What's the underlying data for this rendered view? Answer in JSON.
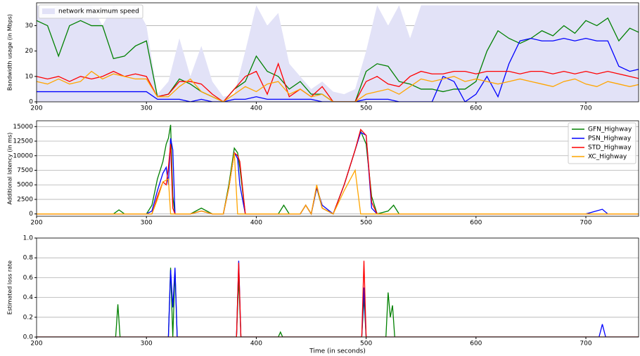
{
  "chart_data": [
    {
      "type": "line",
      "legend": "upper left",
      "grid": true,
      "y_label": "Bandwidth usage (in Mbps)",
      "xlim": [
        200,
        748
      ],
      "xticks": [
        200,
        300,
        400,
        500,
        600,
        700
      ],
      "ylim": [
        0,
        39
      ],
      "yticks": [
        0,
        10,
        20,
        30
      ],
      "x": [
        200,
        210,
        220,
        230,
        240,
        250,
        260,
        270,
        280,
        290,
        300,
        310,
        320,
        330,
        340,
        350,
        360,
        370,
        380,
        390,
        400,
        410,
        420,
        430,
        440,
        450,
        460,
        470,
        480,
        490,
        500,
        510,
        520,
        530,
        540,
        550,
        560,
        570,
        580,
        590,
        600,
        610,
        620,
        630,
        640,
        650,
        660,
        670,
        680,
        690,
        700,
        710,
        720,
        730,
        740,
        750
      ],
      "series": [
        {
          "name": "network maximum speed",
          "style": "area",
          "color": "#e2e2f7",
          "values": [
            38,
            36,
            38,
            34,
            38,
            38,
            30,
            38,
            35,
            38,
            30,
            3,
            8,
            25,
            10,
            22,
            8,
            2,
            3,
            20,
            38,
            30,
            35,
            15,
            10,
            5,
            8,
            4,
            3,
            5,
            20,
            38,
            30,
            38,
            25,
            38,
            38,
            38,
            38,
            38,
            38,
            38,
            38,
            38,
            38,
            38,
            38,
            38,
            38,
            38,
            38,
            38,
            38,
            38,
            38,
            38
          ]
        },
        {
          "color": "#008000",
          "values": [
            32,
            30,
            18,
            30,
            32,
            30,
            30,
            17,
            18,
            22,
            24,
            2,
            3,
            9,
            7,
            4,
            2,
            0,
            5,
            8,
            18,
            12,
            10,
            5,
            8,
            3,
            3,
            0,
            0,
            0,
            12,
            15,
            14,
            8,
            7,
            5,
            5,
            4,
            5,
            5,
            8,
            20,
            28,
            25,
            23,
            25,
            28,
            26,
            30,
            27,
            32,
            30,
            33,
            24,
            29,
            27
          ]
        },
        {
          "color": "#0000ff",
          "values": [
            4,
            4,
            4,
            4,
            4,
            4,
            4,
            4,
            4,
            4,
            4,
            1,
            1,
            1,
            0,
            1,
            0,
            0,
            1,
            1,
            2,
            1,
            1,
            1,
            1,
            1,
            0,
            0,
            0,
            0,
            1,
            1,
            1,
            0,
            0,
            0,
            0,
            10,
            8,
            0,
            3,
            10,
            2,
            15,
            24,
            25,
            24,
            24,
            25,
            24,
            25,
            24,
            24,
            14,
            12,
            13
          ]
        },
        {
          "color": "#ff0000",
          "values": [
            10,
            9,
            10,
            8,
            10,
            9,
            10,
            12,
            10,
            11,
            10,
            2,
            3,
            8,
            8,
            7,
            3,
            0,
            5,
            10,
            12,
            3,
            15,
            2,
            5,
            2,
            6,
            0,
            0,
            0,
            8,
            10,
            7,
            6,
            10,
            12,
            11,
            11,
            12,
            12,
            11,
            12,
            12,
            12,
            11,
            12,
            12,
            11,
            12,
            11,
            12,
            11,
            12,
            11,
            10,
            9
          ]
        },
        {
          "color": "#ffa500",
          "values": [
            8,
            7,
            9,
            7,
            8,
            12,
            9,
            11,
            10,
            9,
            9,
            2,
            2,
            6,
            9,
            4,
            2,
            0,
            3,
            6,
            4,
            7,
            8,
            3,
            5,
            2,
            3,
            0,
            0,
            0,
            3,
            4,
            5,
            3,
            6,
            9,
            8,
            9,
            10,
            8,
            9,
            8,
            7,
            8,
            9,
            8,
            7,
            6,
            8,
            9,
            7,
            6,
            8,
            7,
            6,
            7
          ]
        }
      ]
    },
    {
      "type": "line",
      "legend": "upper right",
      "grid": true,
      "y_label": "Additional latency (in ms)",
      "xlim": [
        200,
        748
      ],
      "xticks": [
        200,
        300,
        400,
        500,
        600,
        700
      ],
      "ylim": [
        -400,
        16000
      ],
      "yticks": [
        0,
        2500,
        5000,
        7500,
        10000,
        12500,
        15000
      ],
      "x": [
        200,
        250,
        270,
        275,
        280,
        300,
        305,
        310,
        315,
        318,
        320,
        322,
        324,
        326,
        330,
        340,
        350,
        360,
        370,
        375,
        380,
        383,
        385,
        390,
        400,
        420,
        425,
        430,
        440,
        445,
        450,
        455,
        460,
        470,
        480,
        490,
        495,
        500,
        505,
        510,
        520,
        525,
        530,
        550,
        600,
        700,
        715,
        720,
        750
      ],
      "series": [
        {
          "name": "GFN_Highway",
          "color": "#008000",
          "values": [
            0,
            0,
            0,
            700,
            0,
            0,
            1500,
            6000,
            9000,
            12000,
            13000,
            15300,
            3000,
            0,
            0,
            0,
            1000,
            0,
            0,
            5000,
            11300,
            10500,
            8000,
            0,
            0,
            0,
            1500,
            0,
            0,
            1500,
            0,
            4500,
            1000,
            0,
            5000,
            11000,
            14200,
            12000,
            3000,
            0,
            500,
            1500,
            0,
            0,
            0,
            0,
            0,
            0,
            0
          ]
        },
        {
          "name": "PSN_Highway",
          "color": "#0000ff",
          "values": [
            0,
            0,
            0,
            0,
            0,
            0,
            500,
            4000,
            7000,
            8000,
            5000,
            13000,
            11000,
            0,
            0,
            0,
            500,
            0,
            0,
            4500,
            10500,
            9500,
            5000,
            0,
            0,
            0,
            0,
            0,
            0,
            1500,
            0,
            4500,
            1500,
            0,
            5000,
            11000,
            14000,
            13500,
            1000,
            0,
            0,
            0,
            0,
            0,
            0,
            0,
            800,
            0,
            0
          ]
        },
        {
          "name": "STD_Highway",
          "color": "#ff0000",
          "values": [
            0,
            0,
            0,
            0,
            0,
            0,
            0,
            3000,
            5500,
            5000,
            8000,
            12000,
            1000,
            0,
            0,
            0,
            500,
            0,
            0,
            4500,
            10500,
            10000,
            9000,
            0,
            0,
            0,
            0,
            0,
            0,
            1500,
            0,
            4800,
            1000,
            0,
            5000,
            11000,
            14500,
            13500,
            2000,
            0,
            0,
            0,
            0,
            0,
            0,
            0,
            0,
            0,
            0
          ]
        },
        {
          "name": "XC_Highway",
          "color": "#ffa500",
          "values": [
            0,
            0,
            0,
            0,
            0,
            0,
            0,
            2500,
            5500,
            5800,
            6000,
            0,
            0,
            0,
            0,
            0,
            500,
            0,
            0,
            4500,
            10500,
            0,
            0,
            0,
            0,
            0,
            0,
            0,
            0,
            1500,
            0,
            5000,
            1000,
            0,
            4000,
            7500,
            0,
            0,
            0,
            0,
            0,
            0,
            0,
            0,
            0,
            0,
            0,
            0,
            0
          ]
        }
      ]
    },
    {
      "type": "line",
      "grid": true,
      "y_label": "Estimated loss rate",
      "x_label": "Time (in seconds)",
      "xlim": [
        200,
        748
      ],
      "xticks": [
        200,
        300,
        400,
        500,
        600,
        700
      ],
      "ylim": [
        0,
        1
      ],
      "yticks": [
        {
          "value": 0,
          "label": "0.0"
        },
        {
          "value": 0.2,
          "label": "0.2"
        },
        {
          "value": 0.4,
          "label": "0.4"
        },
        {
          "value": 0.6,
          "label": "0.6"
        },
        {
          "value": 0.8,
          "label": "0.8"
        },
        {
          "value": 1,
          "label": "1.0"
        }
      ],
      "x": [
        200,
        272,
        274,
        276,
        320,
        322,
        324,
        326,
        328,
        382,
        384,
        386,
        420,
        422,
        424,
        496,
        498,
        500,
        502,
        518,
        520,
        522,
        524,
        526,
        712,
        715,
        718,
        750
      ],
      "series": [
        {
          "color": "#008000",
          "values": [
            0,
            0,
            0.33,
            0,
            0,
            0.7,
            0,
            0.67,
            0,
            0,
            0.6,
            0,
            0,
            0.05,
            0,
            0,
            0.4,
            0,
            0,
            0,
            0.45,
            0.2,
            0.32,
            0,
            0,
            0,
            0,
            0
          ]
        },
        {
          "color": "#0000ff",
          "values": [
            0,
            0,
            0,
            0,
            0,
            0.68,
            0.3,
            0.7,
            0,
            0,
            0.77,
            0,
            0,
            0,
            0,
            0,
            0.5,
            0,
            0,
            0,
            0,
            0,
            0,
            0,
            0,
            0.13,
            0,
            0
          ]
        },
        {
          "color": "#ff0000",
          "values": [
            0,
            0,
            0,
            0,
            0,
            0,
            0,
            0,
            0,
            0,
            0.75,
            0,
            0,
            0,
            0,
            0,
            0.77,
            0,
            0,
            0,
            0,
            0,
            0,
            0,
            0,
            0,
            0,
            0
          ]
        },
        {
          "color": "#8b4513",
          "values": [
            0,
            0,
            0,
            0,
            0,
            0,
            0,
            0,
            0,
            0,
            0,
            0,
            0,
            0,
            0,
            0,
            0,
            0,
            0,
            0,
            0,
            0,
            0,
            0,
            0,
            0,
            0,
            0
          ]
        }
      ]
    }
  ]
}
